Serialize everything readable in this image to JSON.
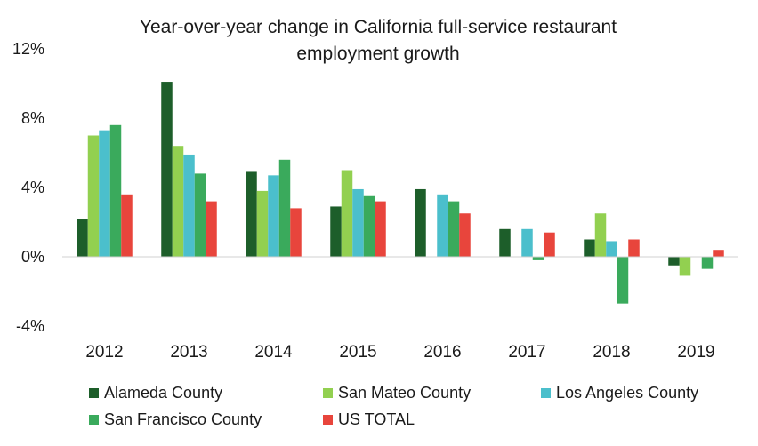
{
  "chart_data": {
    "type": "bar",
    "title": "Year-over-year change in California full-service restaurant employment growth",
    "xlabel": "",
    "ylabel": "",
    "categories": [
      "2012",
      "2013",
      "2014",
      "2015",
      "2016",
      "2017",
      "2018",
      "2019"
    ],
    "y_ticks": [
      "12%",
      "8%",
      "4%",
      "0%",
      "-4%"
    ],
    "ylim": [
      -4,
      12
    ],
    "grid": false,
    "legend_position": "bottom",
    "series": [
      {
        "name": "Alameda County",
        "color": "#1d5e2a",
        "values": [
          2.2,
          10.1,
          4.9,
          2.9,
          3.9,
          1.6,
          1.0,
          -0.5
        ]
      },
      {
        "name": "San Mateo County",
        "color": "#92d050",
        "values": [
          7.0,
          6.4,
          3.8,
          5.0,
          null,
          null,
          2.5,
          -1.1
        ]
      },
      {
        "name": "Los Angeles County",
        "color": "#4bbfcc",
        "values": [
          7.3,
          5.9,
          4.7,
          3.9,
          3.6,
          1.6,
          0.9,
          null
        ]
      },
      {
        "name": "San Francisco County",
        "color": "#3aaa5c",
        "values": [
          7.6,
          4.8,
          5.6,
          3.5,
          3.2,
          -0.2,
          -2.7,
          -0.7
        ]
      },
      {
        "name": "US TOTAL",
        "color": "#e8453c",
        "values": [
          3.6,
          3.2,
          2.8,
          3.2,
          2.5,
          1.4,
          1.0,
          0.4
        ]
      }
    ]
  }
}
